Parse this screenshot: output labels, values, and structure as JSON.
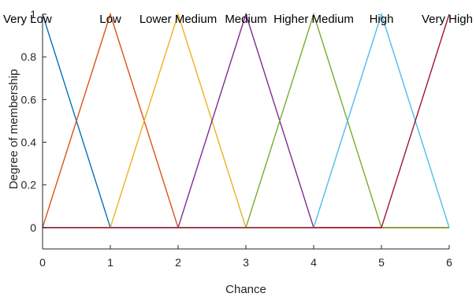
{
  "chart_data": {
    "type": "line",
    "title": "",
    "xlabel": "Chance",
    "ylabel": "Degree of membership",
    "xlim": [
      0,
      6
    ],
    "ylim": [
      -0.1,
      1
    ],
    "xticks": [
      0,
      1,
      2,
      3,
      4,
      5,
      6
    ],
    "yticks": [
      0,
      0.2,
      0.4,
      0.6,
      0.8,
      1
    ],
    "xtick_labels": [
      "0",
      "1",
      "2",
      "3",
      "4",
      "5",
      "6"
    ],
    "ytick_labels": [
      "0",
      "0.2",
      "0.4",
      "0.6",
      "0.8",
      "1"
    ],
    "grid": false,
    "series": [
      {
        "label": "Very Low",
        "label_x": 0,
        "color": "#0072BD",
        "points": [
          [
            0,
            1
          ],
          [
            1,
            0
          ],
          [
            6,
            0
          ]
        ]
      },
      {
        "label": "Low",
        "label_x": 1,
        "color": "#D95319",
        "points": [
          [
            0,
            0
          ],
          [
            1,
            1
          ],
          [
            2,
            0
          ],
          [
            6,
            0
          ]
        ]
      },
      {
        "label": "Lower Medium",
        "label_x": 2,
        "color": "#EDB120",
        "points": [
          [
            0,
            0
          ],
          [
            1,
            0
          ],
          [
            2,
            1
          ],
          [
            3,
            0
          ],
          [
            6,
            0
          ]
        ]
      },
      {
        "label": "Medium",
        "label_x": 3,
        "color": "#7E2F8E",
        "points": [
          [
            0,
            0
          ],
          [
            2,
            0
          ],
          [
            3,
            1
          ],
          [
            4,
            0
          ],
          [
            6,
            0
          ]
        ]
      },
      {
        "label": "Higher Medium",
        "label_x": 4,
        "color": "#77AC30",
        "points": [
          [
            0,
            0
          ],
          [
            3,
            0
          ],
          [
            4,
            1
          ],
          [
            5,
            0
          ],
          [
            6,
            0
          ]
        ]
      },
      {
        "label": "High",
        "label_x": 5,
        "color": "#4DBEEE",
        "points": [
          [
            0,
            0
          ],
          [
            4,
            0
          ],
          [
            5,
            1
          ],
          [
            6,
            0
          ]
        ]
      },
      {
        "label": "Very High",
        "label_x": 6,
        "color": "#A2142F",
        "points": [
          [
            0,
            0
          ],
          [
            5,
            0
          ],
          [
            6,
            1
          ]
        ]
      }
    ]
  }
}
